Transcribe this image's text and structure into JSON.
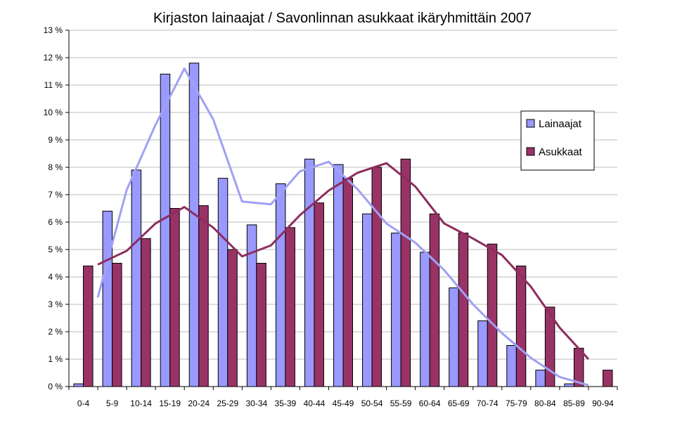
{
  "chart_data": {
    "type": "bar",
    "title": "Kirjaston lainaajat / Savonlinnan asukkaat ikäryhmittäin 2007",
    "xlabel": "",
    "ylabel": "",
    "ylim": [
      0,
      13
    ],
    "y_ticks": [
      "0 %",
      "1 %",
      "2 %",
      "3 %",
      "4 %",
      "5 %",
      "6 %",
      "7 %",
      "8 %",
      "9 %",
      "10 %",
      "11 %",
      "12 %",
      "13 %"
    ],
    "grid": true,
    "legend_position": "right",
    "categories": [
      "0-4",
      "5-9",
      "10-14",
      "15-19",
      "20-24",
      "25-29",
      "30-34",
      "35-39",
      "40-44",
      "45-49",
      "50-54",
      "55-59",
      "60-64",
      "65-69",
      "70-74",
      "75-79",
      "80-84",
      "85-89",
      "90-94"
    ],
    "series": [
      {
        "name": "Lainaajat",
        "bar_color": "#9999ff",
        "line_color": "#a0a0f5",
        "values": [
          0.1,
          6.4,
          7.9,
          11.4,
          11.8,
          7.6,
          5.9,
          7.4,
          8.3,
          8.1,
          6.3,
          5.6,
          4.9,
          3.6,
          2.4,
          1.5,
          0.6,
          0.1,
          0.0
        ]
      },
      {
        "name": "Asukkaat",
        "bar_color": "#993366",
        "line_color": "#8c2d5e",
        "values": [
          4.4,
          4.5,
          5.4,
          6.5,
          6.6,
          5.0,
          4.5,
          5.8,
          6.7,
          7.6,
          8.0,
          8.3,
          6.3,
          5.6,
          5.2,
          4.4,
          2.9,
          1.4,
          0.6
        ]
      }
    ],
    "trendlines": [
      {
        "series": "Lainaajat",
        "values": [
          3.25,
          7.17,
          9.55,
          11.6,
          9.75,
          6.75,
          6.65,
          7.85,
          8.2,
          7.2,
          5.95,
          5.25,
          4.25,
          3.0,
          1.95,
          1.05,
          0.35,
          0.05
        ]
      },
      {
        "series": "Asukkaat",
        "values": [
          4.45,
          4.95,
          5.95,
          6.55,
          5.8,
          4.75,
          5.15,
          6.25,
          7.15,
          7.8,
          8.15,
          7.3,
          5.95,
          5.4,
          4.8,
          3.65,
          2.15,
          1.0
        ]
      }
    ]
  }
}
